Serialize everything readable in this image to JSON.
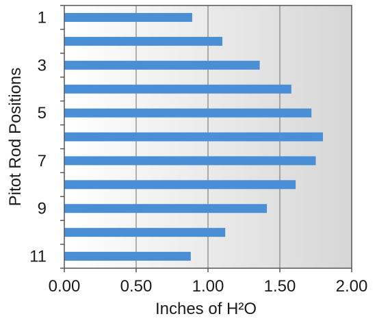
{
  "chart_data": {
    "type": "bar",
    "orientation": "horizontal",
    "categories": [
      1,
      2,
      3,
      4,
      5,
      6,
      7,
      8,
      9,
      10,
      11
    ],
    "category_tick_labels": [
      "1",
      "",
      "3",
      "",
      "5",
      "",
      "7",
      "",
      "9",
      "",
      "11"
    ],
    "values": [
      0.89,
      1.1,
      1.36,
      1.58,
      1.72,
      1.8,
      1.75,
      1.61,
      1.41,
      1.12,
      0.88
    ],
    "x_ticks": [
      "0.00",
      "0.50",
      "1.00",
      "1.50",
      "2.00"
    ],
    "xlim": [
      0,
      2.0
    ],
    "xlabel": "Inches of H²O",
    "ylabel": "Pitot Rod Positions",
    "grid": "vertical",
    "legend": "none",
    "colors": {
      "bar": "#4a8fd6",
      "plot_bg_left": "#ffffff",
      "plot_bg_right": "#d6d6d6",
      "gridline": "#6a6a6a",
      "axis": "#555555"
    }
  }
}
